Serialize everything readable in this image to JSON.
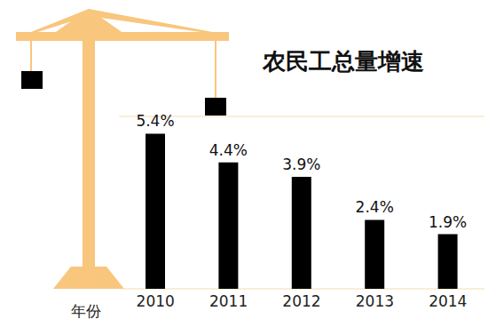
{
  "chart_data": {
    "type": "bar",
    "title": "农民工总量增速",
    "x_label": "年份",
    "categories": [
      "2010",
      "2011",
      "2012",
      "2013",
      "2014"
    ],
    "values": [
      5.4,
      4.4,
      3.9,
      2.4,
      1.9
    ],
    "value_labels": [
      "5.4%",
      "4.4%",
      "3.9%",
      "2.4%",
      "1.9%"
    ],
    "color": "#000000",
    "ylim": [
      0,
      6
    ],
    "yticks": [
      0,
      1,
      2,
      3,
      4,
      5,
      6
    ],
    "grid": true,
    "data_labels": true,
    "tick_labels": "x"
  }
}
